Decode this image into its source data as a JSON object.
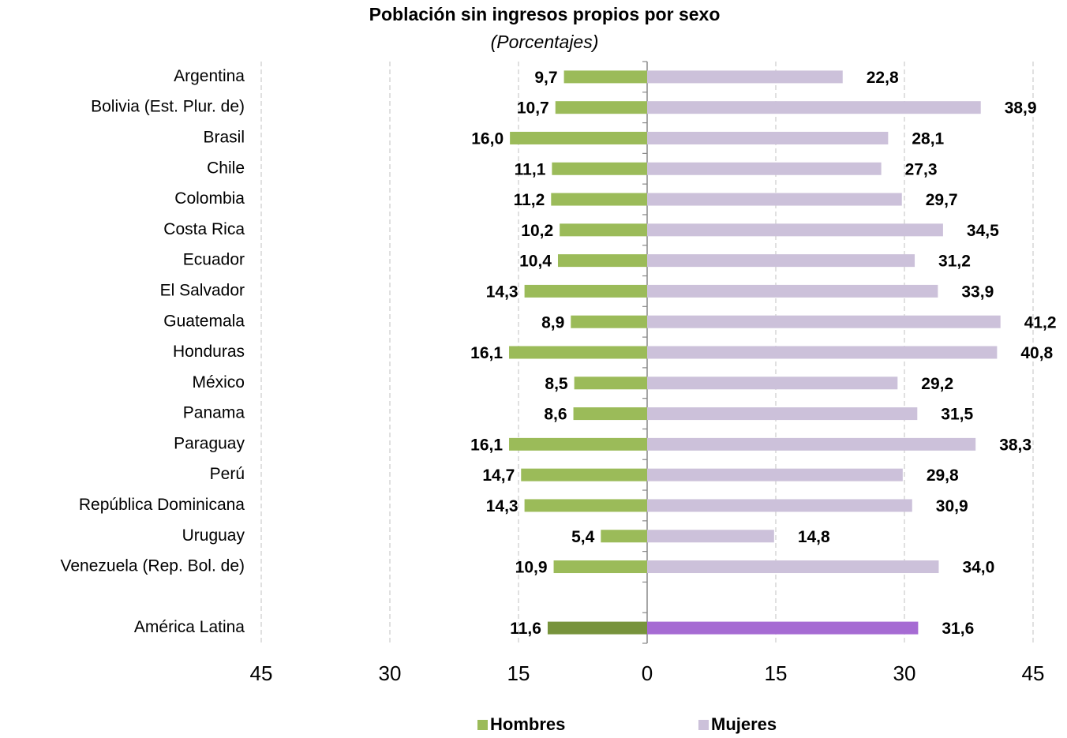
{
  "chart_data": {
    "type": "butterfly-bar",
    "title": "Población sin ingresos propios por sexo",
    "subtitle": "(Porcentajes)",
    "categories": [
      "Argentina",
      "Bolivia (Est. Plur. de)",
      "Brasil",
      "Chile",
      "Colombia",
      "Costa Rica",
      "Ecuador",
      "El Salvador",
      "Guatemala",
      "Honduras",
      "México",
      "Panama",
      "Paraguay",
      "Perú",
      "República Dominicana",
      "Uruguay",
      "Venezuela (Rep. Bol. de)",
      null,
      "América Latina"
    ],
    "series": [
      {
        "name": "Hombres",
        "color": "#9bbb59",
        "side": "left",
        "colors": [
          "#9bbb59",
          "#9bbb59",
          "#9bbb59",
          "#9bbb59",
          "#9bbb59",
          "#9bbb59",
          "#9bbb59",
          "#9bbb59",
          "#9bbb59",
          "#9bbb59",
          "#9bbb59",
          "#9bbb59",
          "#9bbb59",
          "#9bbb59",
          "#9bbb59",
          "#9bbb59",
          "#9bbb59",
          null,
          "#77933c"
        ],
        "values": [
          9.7,
          10.7,
          16.0,
          11.1,
          11.2,
          10.2,
          10.4,
          14.3,
          8.9,
          16.1,
          8.5,
          8.6,
          16.1,
          14.7,
          14.3,
          5.4,
          10.9,
          null,
          11.6
        ],
        "value_labels": [
          "9,7",
          "10,7",
          "16,0",
          "11,1",
          "11,2",
          "10,2",
          "10,4",
          "14,3",
          "8,9",
          "16,1",
          "8,5",
          "8,6",
          "16,1",
          "14,7",
          "14,3",
          "5,4",
          "10,9",
          null,
          "11,6"
        ]
      },
      {
        "name": "Mujeres",
        "color": "#ccc1da",
        "side": "right",
        "colors": [
          "#ccc1da",
          "#ccc1da",
          "#ccc1da",
          "#ccc1da",
          "#ccc1da",
          "#ccc1da",
          "#ccc1da",
          "#ccc1da",
          "#ccc1da",
          "#ccc1da",
          "#ccc1da",
          "#ccc1da",
          "#ccc1da",
          "#ccc1da",
          "#ccc1da",
          "#ccc1da",
          "#ccc1da",
          null,
          "#a66bd3"
        ],
        "values": [
          22.8,
          38.9,
          28.1,
          27.3,
          29.7,
          34.5,
          31.2,
          33.9,
          41.2,
          40.8,
          29.2,
          31.5,
          38.3,
          29.8,
          30.9,
          14.8,
          34.0,
          null,
          31.6
        ],
        "value_labels": [
          "22,8",
          "38,9",
          "28,1",
          "27,3",
          "29,7",
          "34,5",
          "31,2",
          "33,9",
          "41,2",
          "40,8",
          "29,2",
          "31,5",
          "38,3",
          "29,8",
          "30,9",
          "14,8",
          "34,0",
          null,
          "31,6"
        ]
      }
    ],
    "xlim": [
      -45,
      45
    ],
    "xticks": [
      {
        "value": -45,
        "label": "45"
      },
      {
        "value": -30,
        "label": "30"
      },
      {
        "value": -15,
        "label": "15"
      },
      0,
      15,
      30,
      45
    ],
    "grid": true,
    "legend": "bottom"
  }
}
